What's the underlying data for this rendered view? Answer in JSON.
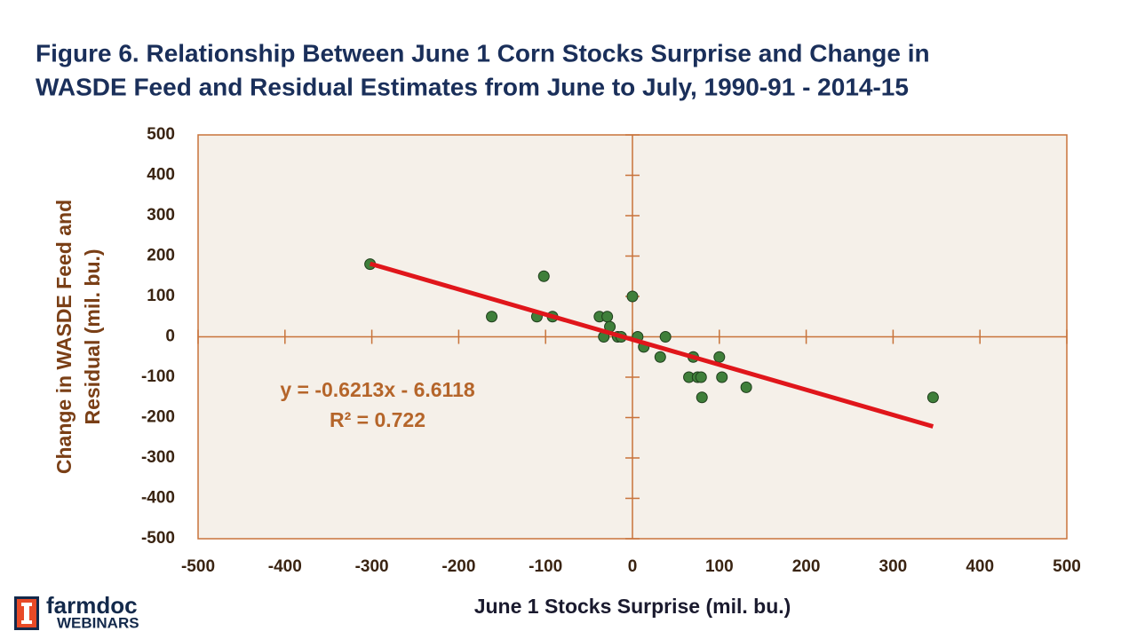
{
  "chart_data": {
    "type": "scatter",
    "title": [
      "Figure 6. Relationship Between June 1 Corn Stocks Surprise and Change in",
      "WASDE Feed and Residual Estimates from June to July, 1990-91 - 2014-15"
    ],
    "x_label": "June 1 Stocks Surprise (mil. bu.)",
    "y_label": [
      "Change in WASDE Feed and",
      "Residual (mil. bu.)"
    ],
    "x": [
      -302,
      -162,
      -102,
      -110,
      -92,
      -38,
      -29,
      -26,
      -33,
      -17,
      -13,
      0,
      6,
      13,
      32,
      38,
      70,
      65,
      75,
      79,
      80,
      100,
      103,
      131,
      346
    ],
    "y": [
      180,
      50,
      150,
      50,
      50,
      50,
      50,
      25,
      0,
      0,
      0,
      100,
      0,
      -25,
      -50,
      0,
      -50,
      -100,
      -100,
      -100,
      -150,
      -50,
      -100,
      -125,
      -150
    ],
    "color": "#3f7f3a",
    "trendline": {
      "x": [
        -302,
        346
      ],
      "y": [
        181,
        -222
      ],
      "color": "#e0161b"
    },
    "annotations": [
      "y = -0.6213x - 6.6118",
      "R² = 0.722"
    ],
    "xlim": [
      -500,
      500
    ],
    "ylim": [
      -500,
      500
    ],
    "xticks": [
      -500,
      -400,
      -300,
      -200,
      -100,
      0,
      100,
      200,
      300,
      400,
      500
    ],
    "yticks": [
      -500,
      -400,
      -300,
      -200,
      -100,
      0,
      100,
      200,
      300,
      400,
      500
    ]
  },
  "logo": {
    "name": "farmdoc",
    "subtitle": "WEBINARS"
  }
}
